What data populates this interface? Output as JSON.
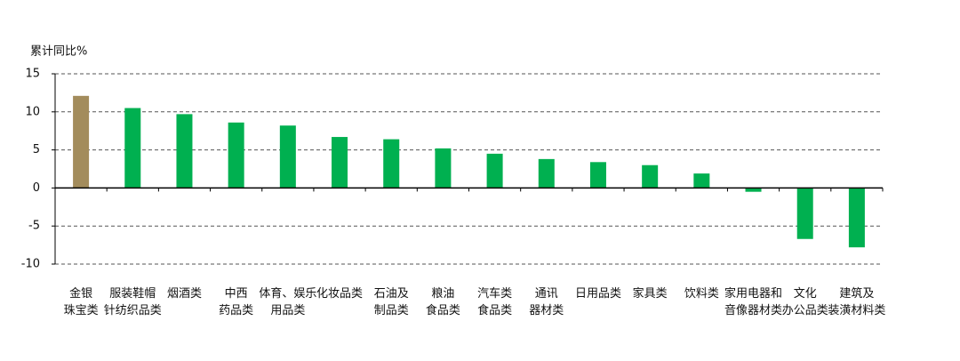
{
  "chart_data": {
    "type": "bar",
    "y_label": "累计同比%",
    "categories": [
      [
        "金银",
        "珠宝类"
      ],
      [
        "服装鞋帽",
        "针纺织品类"
      ],
      [
        "烟酒类"
      ],
      [
        "中西",
        "药品类"
      ],
      [
        "体育、娱乐",
        "用品类"
      ],
      [
        "化妆品类"
      ],
      [
        "石油及",
        "制品类"
      ],
      [
        "粮油",
        "食品类"
      ],
      [
        "汽车类",
        "食品类"
      ],
      [
        "通讯",
        "器材类"
      ],
      [
        "日用品类"
      ],
      [
        "家具类"
      ],
      [
        "饮料类"
      ],
      [
        "家用电器和",
        "音像器材类"
      ],
      [
        "文化",
        "办公品类"
      ],
      [
        "建筑及",
        "装潢材料类"
      ]
    ],
    "values": [
      12.1,
      10.5,
      9.7,
      8.6,
      8.2,
      6.7,
      6.4,
      5.2,
      4.5,
      3.8,
      3.4,
      3.0,
      1.9,
      -0.5,
      -6.7,
      -7.8
    ],
    "colors": [
      "#a38c5c",
      "#00b050",
      "#00b050",
      "#00b050",
      "#00b050",
      "#00b050",
      "#00b050",
      "#00b050",
      "#00b050",
      "#00b050",
      "#00b050",
      "#00b050",
      "#00b050",
      "#00b050",
      "#00b050",
      "#00b050"
    ],
    "ylim": [
      -10,
      15
    ],
    "yticks": [
      -10,
      -5,
      0,
      5,
      10,
      15
    ],
    "grid": true
  }
}
